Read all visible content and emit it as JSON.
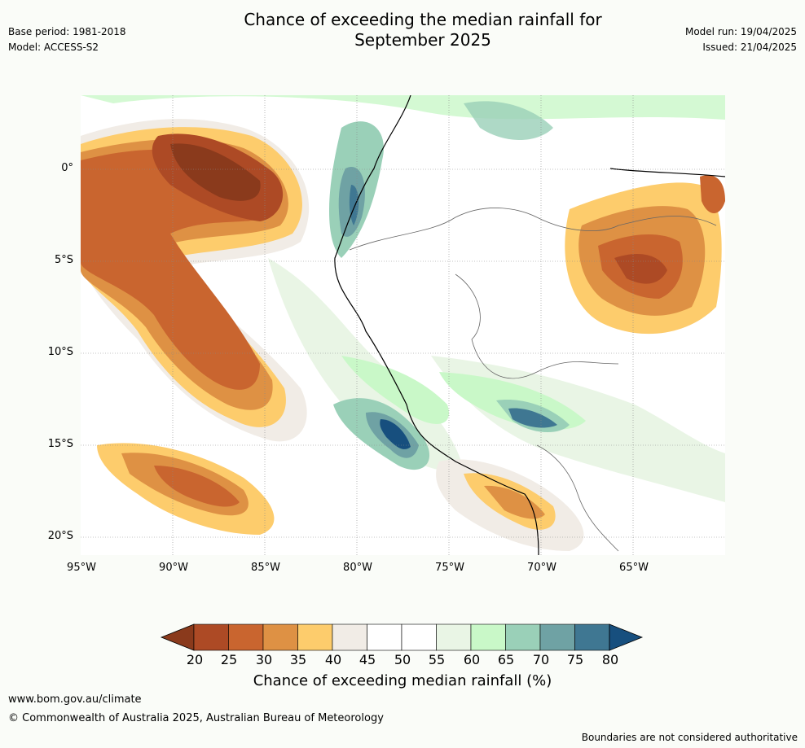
{
  "header": {
    "title_line1": "Chance of exceeding the median rainfall for",
    "title_line2": "September 2025",
    "base_period": "Base period: 1981-2018",
    "model": "Model: ACCESS-S2",
    "model_run": "Model run: 19/04/2025",
    "issued": "Issued: 21/04/2025"
  },
  "map": {
    "lat_ticks": [
      "0°",
      "5°S",
      "10°S",
      "15°S",
      "20°S"
    ],
    "lon_ticks": [
      "95°W",
      "90°W",
      "85°W",
      "80°W",
      "75°W",
      "70°W",
      "65°W"
    ]
  },
  "colorbar": {
    "labels": [
      "20",
      "25",
      "30",
      "35",
      "40",
      "45",
      "50",
      "55",
      "60",
      "65",
      "70",
      "75",
      "80"
    ],
    "colors": [
      "#8a3a1c",
      "#ad4a25",
      "#c9652f",
      "#de9144",
      "#fdcc6c",
      "#f1ece6",
      "#ffffff",
      "#ffffff",
      "#e9f5e5",
      "#c9f8c8",
      "#9ad0b8",
      "#6fa2a4",
      "#3f7792",
      "#174f7e"
    ],
    "title": "Chance of exceeding median rainfall (%)"
  },
  "footer": {
    "url": "www.bom.gov.au/climate",
    "copyright": "© Commonwealth of Australia 2025, Australian Bureau of Meteorology",
    "note": "Boundaries are not considered authoritative"
  }
}
